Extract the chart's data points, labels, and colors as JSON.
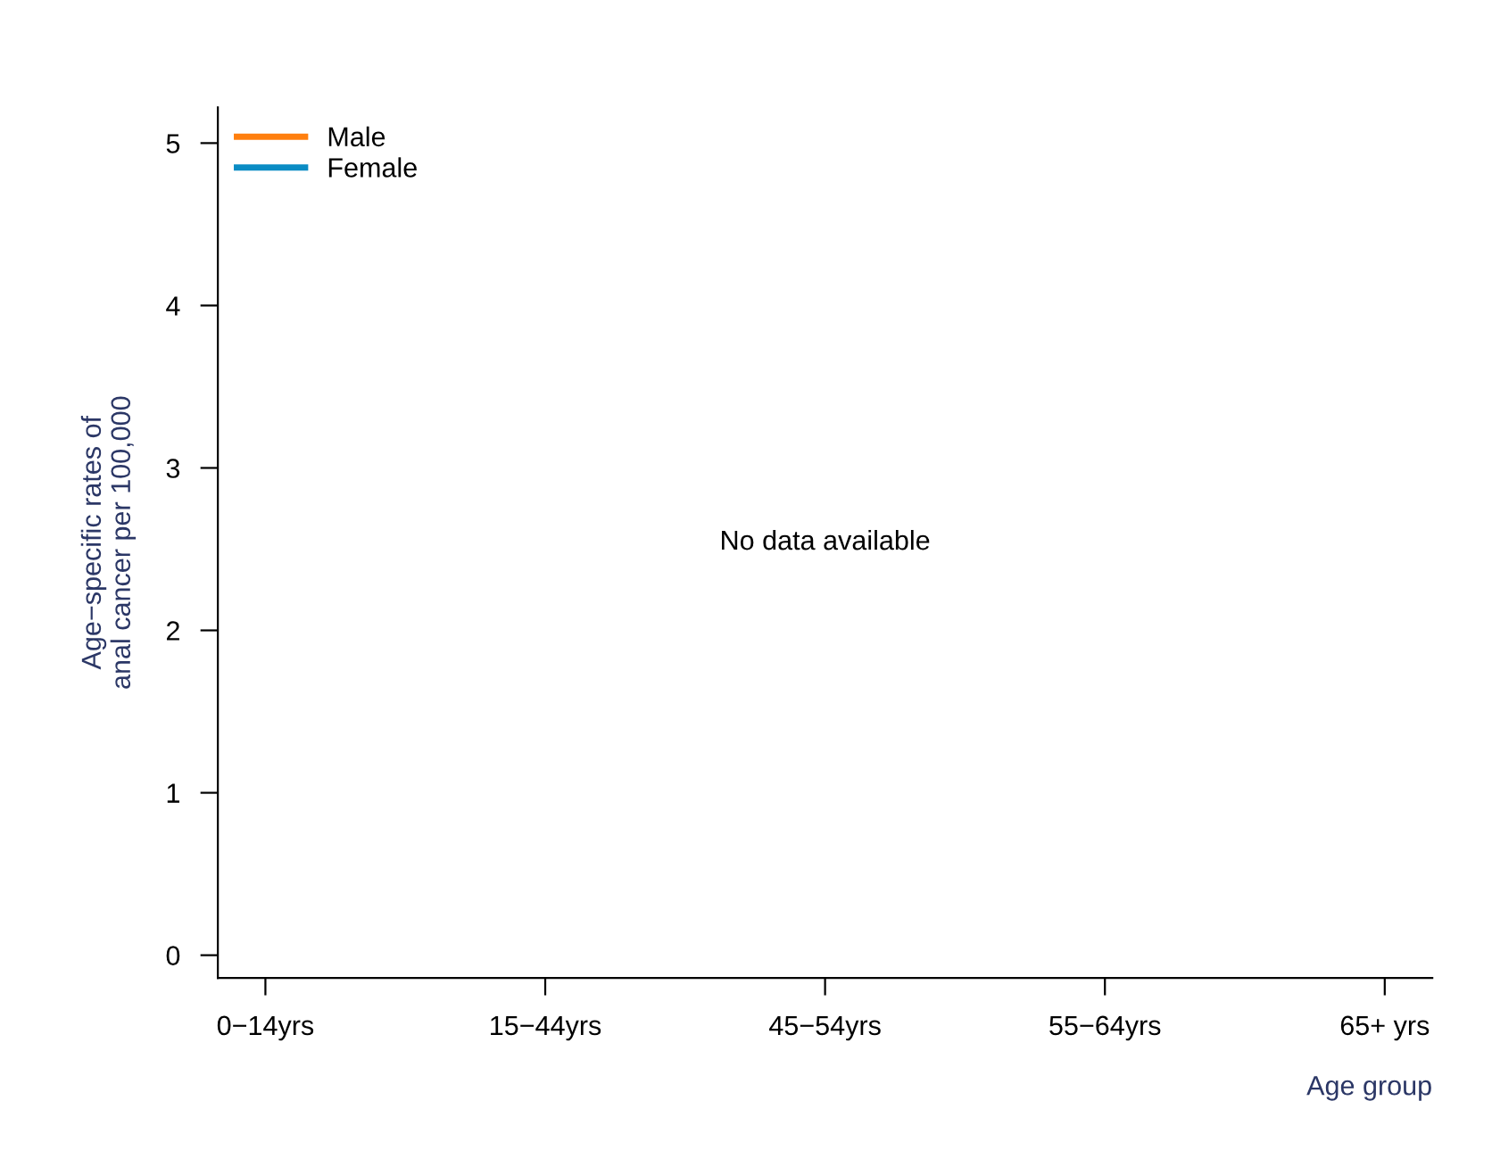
{
  "chart_data": {
    "type": "line",
    "ylabel": "Age−specific rates of\nanal cancer per 100,000",
    "xlabel": "Age group",
    "categories": [
      "0−14yrs",
      "15−44yrs",
      "45−54yrs",
      "55−64yrs",
      "65+ yrs"
    ],
    "series": [
      {
        "name": "Male",
        "color": "#ff7f0e",
        "values": [
          null,
          null,
          null,
          null,
          null
        ]
      },
      {
        "name": "Female",
        "color": "#0a8cc4",
        "values": [
          null,
          null,
          null,
          null,
          null
        ]
      }
    ],
    "ylim": [
      -0.14,
      5.22
    ],
    "yticks": [
      0,
      1,
      2,
      3,
      4,
      5
    ],
    "annotations": [
      "No data available"
    ],
    "legend": "top left",
    "grid": false
  }
}
